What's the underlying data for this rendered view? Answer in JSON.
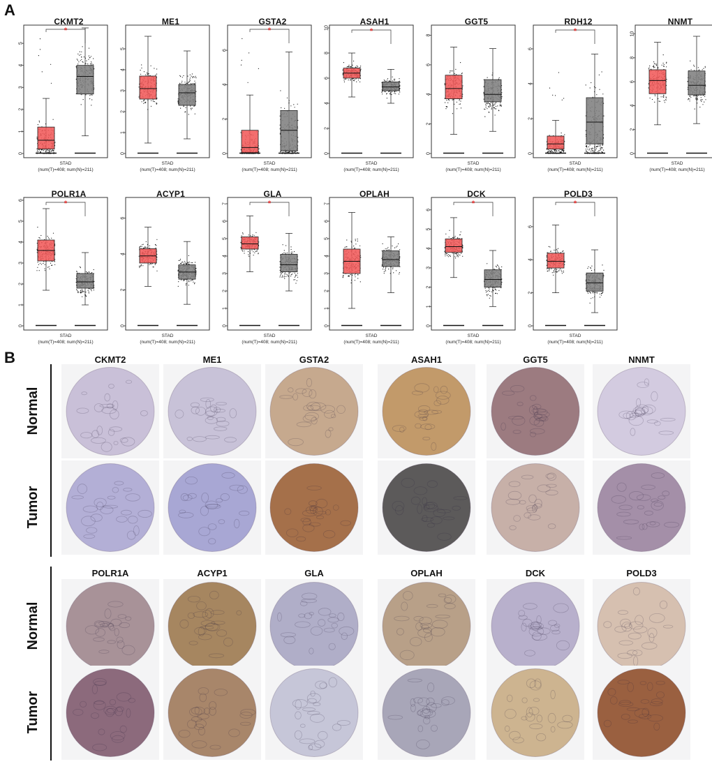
{
  "panel_a": {
    "letter": "A",
    "chart_data": [
      {
        "type": "box",
        "gene": "CKMT2",
        "significant": true,
        "yticks": [
          0,
          1,
          2,
          3,
          4,
          5
        ],
        "ymax": 5.7,
        "tumor": {
          "min": 0,
          "q1": 0.2,
          "median": 0.6,
          "q3": 1.2,
          "max": 2.5,
          "outlier_max": 5.8
        },
        "normal": {
          "min": 0.8,
          "q1": 2.7,
          "median": 3.5,
          "q3": 4.0,
          "max": 5.7
        },
        "dataset": "STAD",
        "counts": "(num(T)=408; num(N)=211)"
      },
      {
        "type": "box",
        "gene": "ME1",
        "significant": false,
        "yticks": [
          0,
          1,
          2,
          3,
          4,
          5
        ],
        "ymax": 6.0,
        "tumor": {
          "min": 0.5,
          "q1": 2.6,
          "median": 3.1,
          "q3": 3.7,
          "max": 5.6
        },
        "normal": {
          "min": 0.7,
          "q1": 2.3,
          "median": 2.9,
          "q3": 3.3,
          "max": 4.9
        },
        "dataset": "STAD",
        "counts": "(num(T)=408; num(N)=211)"
      },
      {
        "type": "box",
        "gene": "GSTA2",
        "significant": true,
        "yticks": [
          0,
          2,
          4,
          6
        ],
        "ymax": 7.3,
        "tumor": {
          "min": 0,
          "q1": 0.05,
          "median": 0.35,
          "q3": 1.35,
          "max": 3.4,
          "outlier_max": 7.2
        },
        "normal": {
          "min": 0,
          "q1": 0.15,
          "median": 1.35,
          "q3": 2.5,
          "max": 5.9
        },
        "dataset": "STAD",
        "counts": "(num(T)=408; num(N)=211)"
      },
      {
        "type": "box",
        "gene": "ASAH1",
        "significant": true,
        "yticks": [
          0,
          2,
          4,
          6,
          8,
          10
        ],
        "ymax": 10,
        "tumor": {
          "min": 4.5,
          "q1": 6.0,
          "median": 6.4,
          "q3": 6.8,
          "max": 8.0
        },
        "normal": {
          "min": 4.0,
          "q1": 5.0,
          "median": 5.3,
          "q3": 5.7,
          "max": 6.7
        },
        "dataset": "STAD",
        "counts": "(num(T)=408; num(N)=211)"
      },
      {
        "type": "box",
        "gene": "GGT5",
        "significant": false,
        "yticks": [
          0,
          2,
          4,
          6,
          8
        ],
        "ymax": 8.5,
        "tumor": {
          "min": 1.3,
          "q1": 3.7,
          "median": 4.4,
          "q3": 5.3,
          "max": 7.2
        },
        "normal": {
          "min": 1.5,
          "q1": 3.5,
          "median": 4.0,
          "q3": 5.0,
          "max": 7.1
        },
        "dataset": "STAD",
        "counts": "(num(T)=408; num(N)=211)"
      },
      {
        "type": "box",
        "gene": "RDH12",
        "significant": true,
        "yticks": [
          0,
          2,
          4,
          6
        ],
        "ymax": 7.2,
        "tumor": {
          "min": 0,
          "q1": 0.25,
          "median": 0.55,
          "q3": 1.0,
          "max": 1.9,
          "outlier_max": 4.9
        },
        "normal": {
          "min": 0,
          "q1": 0.55,
          "median": 1.8,
          "q3": 3.2,
          "max": 5.7
        },
        "dataset": "STAD",
        "counts": "(num(T)=408; num(N)=211)"
      },
      {
        "type": "box",
        "gene": "NNMT",
        "significant": false,
        "yticks": [
          0,
          2,
          4,
          6,
          8,
          10
        ],
        "ymax": 10.5,
        "tumor": {
          "min": 2.4,
          "q1": 5.0,
          "median": 6.1,
          "q3": 7.0,
          "max": 9.3
        },
        "normal": {
          "min": 2.5,
          "q1": 4.9,
          "median": 5.7,
          "q3": 6.9,
          "max": 9.8
        },
        "dataset": "STAD",
        "counts": "(num(T)=408; num(N)=211)"
      },
      {
        "type": "box",
        "gene": "POLR1A",
        "significant": true,
        "yticks": [
          0,
          1,
          2,
          3,
          4,
          5,
          6
        ],
        "ymax": 6.0,
        "tumor": {
          "min": 1.7,
          "q1": 3.1,
          "median": 3.6,
          "q3": 4.1,
          "max": 5.6
        },
        "normal": {
          "min": 1.0,
          "q1": 1.8,
          "median": 2.1,
          "q3": 2.5,
          "max": 3.5
        },
        "dataset": "STAD",
        "counts": "(num(T)=408; num(N)=211)"
      },
      {
        "type": "box",
        "gene": "ACYP1",
        "significant": false,
        "yticks": [
          0,
          2,
          4,
          6
        ],
        "ymax": 7.0,
        "tumor": {
          "min": 2.2,
          "q1": 3.5,
          "median": 3.9,
          "q3": 4.3,
          "max": 5.5
        },
        "normal": {
          "min": 1.2,
          "q1": 2.6,
          "median": 3.0,
          "q3": 3.4,
          "max": 4.7
        },
        "dataset": "STAD",
        "counts": "(num(T)=408; num(N)=211)"
      },
      {
        "type": "box",
        "gene": "GLA",
        "significant": true,
        "yticks": [
          0,
          1,
          2,
          3,
          4,
          5,
          6,
          7
        ],
        "ymax": 7.2,
        "tumor": {
          "min": 3.1,
          "q1": 4.4,
          "median": 4.7,
          "q3": 5.1,
          "max": 6.3
        },
        "normal": {
          "min": 2.0,
          "q1": 3.1,
          "median": 3.5,
          "q3": 4.1,
          "max": 5.3
        },
        "dataset": "STAD",
        "counts": "(num(T)=408; num(N)=211)"
      },
      {
        "type": "box",
        "gene": "OPLAH",
        "significant": false,
        "yticks": [
          0,
          1,
          2,
          3,
          4,
          5,
          6,
          7
        ],
        "ymax": 7.2,
        "tumor": {
          "min": 1.0,
          "q1": 3.0,
          "median": 3.7,
          "q3": 4.4,
          "max": 6.5
        },
        "normal": {
          "min": 1.9,
          "q1": 3.4,
          "median": 3.8,
          "q3": 4.3,
          "max": 5.1
        },
        "dataset": "STAD",
        "counts": "(num(T)=408; num(N)=211)"
      },
      {
        "type": "box",
        "gene": "DCK",
        "significant": true,
        "yticks": [
          0,
          1,
          2,
          3,
          4,
          5,
          6
        ],
        "ymax": 6.5,
        "tumor": {
          "min": 2.5,
          "q1": 3.8,
          "median": 4.1,
          "q3": 4.5,
          "max": 5.6
        },
        "normal": {
          "min": 1.0,
          "q1": 2.0,
          "median": 2.4,
          "q3": 2.9,
          "max": 3.9
        },
        "dataset": "STAD",
        "counts": "(num(T)=408; num(N)=211)"
      },
      {
        "type": "box",
        "gene": "POLD3",
        "significant": true,
        "yticks": [
          0,
          2,
          4,
          6
        ],
        "ymax": 7.6,
        "tumor": {
          "min": 2.0,
          "q1": 3.5,
          "median": 3.9,
          "q3": 4.4,
          "max": 6.1
        },
        "normal": {
          "min": 0.8,
          "q1": 2.1,
          "median": 2.6,
          "q3": 3.2,
          "max": 4.6
        },
        "dataset": "STAD",
        "counts": "(num(T)=408; num(N)=211)"
      }
    ],
    "colors": {
      "tumor": "#f15a5a",
      "normal": "#7f7f7f",
      "significance": "#e8302f",
      "axis": "#333333"
    },
    "significance_symbol": "*"
  },
  "panel_b": {
    "letter": "B",
    "row_labels": {
      "normal": "Normal",
      "tumor": "Tumor"
    },
    "top_genes": [
      "CKMT2",
      "ME1",
      "GSTA2",
      "ASAH1",
      "GGT5",
      "NNMT"
    ],
    "bottom_genes": [
      "POLR1A",
      "ACYP1",
      "GLA",
      "OPLAH",
      "DCK",
      "POLD3"
    ],
    "stain_colors": {
      "top_normal": [
        "#c9c0d8",
        "#c8c2d8",
        "#c6a98e",
        "#c29a6a",
        "#9c7b80",
        "#d3cbe0"
      ],
      "top_tumor": [
        "#b3afd6",
        "#a8a7d4",
        "#a5704a",
        "#5c5a5a",
        "#c7b0a8",
        "#a48fa8"
      ],
      "bottom_normal": [
        "#a89298",
        "#a68660",
        "#b0aec8",
        "#b8a088",
        "#b8b0cc",
        "#d6c0b0"
      ],
      "bottom_tumor": [
        "#8c6a7c",
        "#a8866a",
        "#c6c6d8",
        "#a8a6b8",
        "#cdb490",
        "#9a6040"
      ]
    }
  }
}
